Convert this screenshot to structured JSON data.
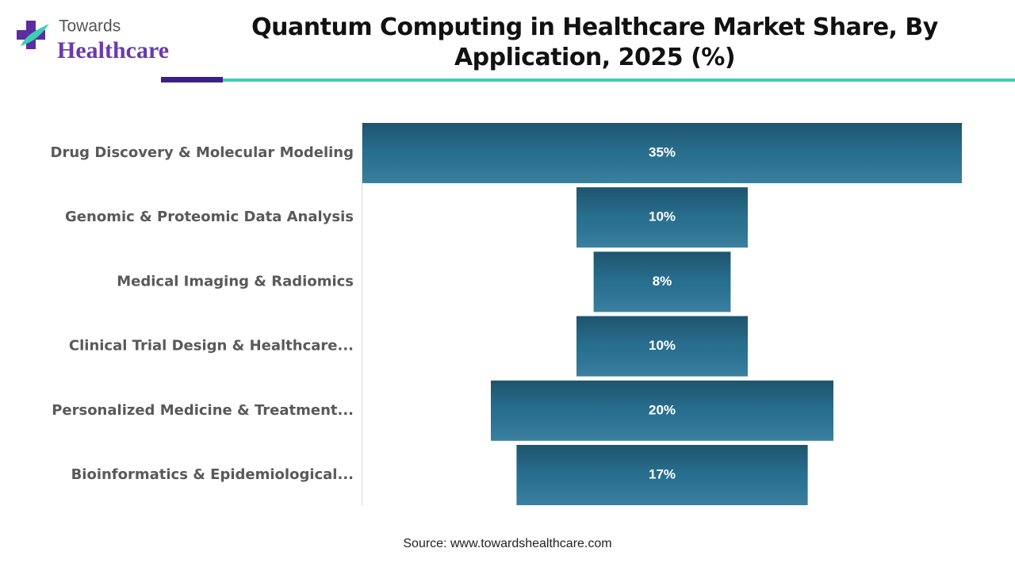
{
  "logo": {
    "line1": "Towards",
    "line2": "Healthcare"
  },
  "chart_data": {
    "type": "funnel",
    "title": "Quantum Computing in Healthcare Market Share, By Application, 2025 (%)",
    "categories": [
      "Drug Discovery & Molecular Modeling",
      "Genomic & Proteomic Data Analysis",
      "Medical Imaging & Radiomics",
      "Clinical Trial Design & Healthcare...",
      "Personalized Medicine & Treatment...",
      "Bioinformatics & Epidemiological..."
    ],
    "values": [
      35,
      10,
      8,
      10,
      20,
      17
    ],
    "value_labels": [
      "35%",
      "10%",
      "8%",
      "10%",
      "20%",
      "17%"
    ],
    "color": "#2a7597"
  },
  "source": "Source: www.towardshealthcare.com"
}
